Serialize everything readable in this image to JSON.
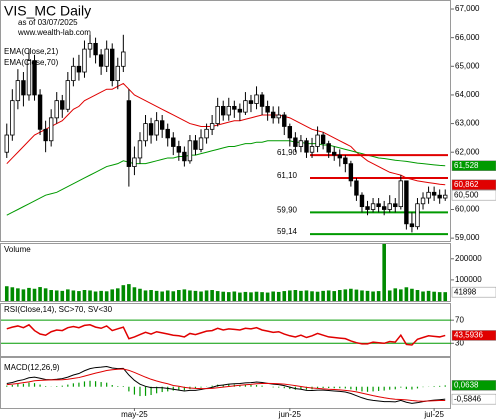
{
  "chart_data": {
    "type": "candlestick",
    "title": "VIS_MC Daily",
    "subtitle": "as of 03/07/2025",
    "source": "www.wealth-lab.com",
    "categories": [
      null,
      null,
      null,
      null,
      null,
      null,
      null,
      null,
      null,
      null,
      null,
      null,
      null,
      null,
      null,
      null,
      null,
      null,
      null,
      null,
      null,
      null,
      null,
      "may-25",
      null,
      null,
      null,
      null,
      null,
      null,
      null,
      null,
      null,
      null,
      null,
      null,
      null,
      null,
      null,
      null,
      null,
      null,
      null,
      null,
      null,
      null,
      null,
      null,
      null,
      null,
      null,
      "jun-25",
      null,
      null,
      null,
      null,
      null,
      null,
      null,
      null,
      null,
      null,
      null,
      null,
      null,
      null,
      null,
      null,
      null,
      null,
      null,
      null,
      null,
      null,
      null,
      null,
      null,
      "jul-25",
      null,
      null
    ],
    "open": [
      62.0,
      62.6,
      63.8,
      64.5,
      64.0,
      65.2,
      64.0,
      62.8,
      62.4,
      63.2,
      63.8,
      63.5,
      64.5,
      65.0,
      64.8,
      65.6,
      65.8,
      65.4,
      65.0,
      65.6,
      64.5,
      65.0,
      63.8,
      61.5,
      61.8,
      62.4,
      63.0,
      62.6,
      63.1,
      62.8,
      62.5,
      62.2,
      62.0,
      61.7,
      62.4,
      62.1,
      62.5,
      62.8,
      63.0,
      63.6,
      63.3,
      63.6,
      63.5,
      63.4,
      63.8,
      63.7,
      64.0,
      63.6,
      63.4,
      63.2,
      63.3,
      62.9,
      62.5,
      62.2,
      62.4,
      62.0,
      62.2,
      62.6,
      62.3,
      62.0,
      61.9,
      61.8,
      61.6,
      61.0,
      60.5,
      60.1,
      60.0,
      60.2,
      60.1,
      60.0,
      60.2,
      60.1,
      61.0,
      59.5,
      59.4,
      60.2,
      60.4,
      60.6,
      60.5,
      60.4
    ],
    "high": [
      63.0,
      64.2,
      64.9,
      64.8,
      65.6,
      65.4,
      64.2,
      63.1,
      63.5,
      64.1,
      64.0,
      64.8,
      65.3,
      65.4,
      65.9,
      66.1,
      66.0,
      65.6,
      65.9,
      65.8,
      65.3,
      66.1,
      64.2,
      62.2,
      62.7,
      63.3,
      63.2,
      63.4,
      63.3,
      63.0,
      62.7,
      62.4,
      62.2,
      62.6,
      62.6,
      62.8,
      63.0,
      63.3,
      63.9,
      63.8,
      63.9,
      63.8,
      63.7,
      64.1,
      64.0,
      64.3,
      64.1,
      63.8,
      63.6,
      63.6,
      63.4,
      63.0,
      62.7,
      62.6,
      62.5,
      62.5,
      62.9,
      62.7,
      62.4,
      62.2,
      62.1,
      61.9,
      61.7,
      61.1,
      60.6,
      60.3,
      60.4,
      60.4,
      60.3,
      60.5,
      60.4,
      61.2,
      61.0,
      59.9,
      60.4,
      60.6,
      60.8,
      60.8,
      60.7,
      60.7
    ],
    "low": [
      61.8,
      62.4,
      63.5,
      63.6,
      63.8,
      63.8,
      62.6,
      62.0,
      62.2,
      63.0,
      63.2,
      63.4,
      64.3,
      64.5,
      64.6,
      65.3,
      65.1,
      64.7,
      64.8,
      64.3,
      64.2,
      64.8,
      60.8,
      61.2,
      61.6,
      62.2,
      62.3,
      62.4,
      62.5,
      62.2,
      61.9,
      61.7,
      61.5,
      61.6,
      61.9,
      62.0,
      62.3,
      62.6,
      62.9,
      63.1,
      63.1,
      63.2,
      63.1,
      63.3,
      63.4,
      63.5,
      63.3,
      63.1,
      63.0,
      63.0,
      62.6,
      62.2,
      62.0,
      62.0,
      61.8,
      61.8,
      62.0,
      62.1,
      61.8,
      61.7,
      61.5,
      61.3,
      60.8,
      60.3,
      59.9,
      59.8,
      59.9,
      59.9,
      59.8,
      59.9,
      59.9,
      60.0,
      59.3,
      59.2,
      59.3,
      60.0,
      60.2,
      60.3,
      60.2,
      60.3
    ],
    "close": [
      62.6,
      63.8,
      64.5,
      64.0,
      65.2,
      64.0,
      62.8,
      62.4,
      63.2,
      63.8,
      63.5,
      64.5,
      65.0,
      64.8,
      65.6,
      65.8,
      65.4,
      65.0,
      65.6,
      64.5,
      65.0,
      65.5,
      61.5,
      61.8,
      62.4,
      63.0,
      62.6,
      63.1,
      62.8,
      62.5,
      62.2,
      62.0,
      61.7,
      62.4,
      62.1,
      62.5,
      62.8,
      63.0,
      63.6,
      63.3,
      63.6,
      63.5,
      63.4,
      63.8,
      63.7,
      64.0,
      63.6,
      63.4,
      63.2,
      63.3,
      62.9,
      62.5,
      62.2,
      62.4,
      62.0,
      62.2,
      62.6,
      62.3,
      62.0,
      61.9,
      61.8,
      61.6,
      61.0,
      60.5,
      60.1,
      60.0,
      60.2,
      60.1,
      60.0,
      60.2,
      60.1,
      61.0,
      59.5,
      59.4,
      60.2,
      60.4,
      60.6,
      60.5,
      60.4,
      60.5
    ],
    "close_label": "60,500",
    "up_color": "#ffffff",
    "down_color": "#000000",
    "ylim": [
      58.9,
      67.28
    ],
    "yticks": [
      {
        "value": 67,
        "label": "67,000"
      },
      {
        "value": 66,
        "label": "66,000"
      },
      {
        "value": 65,
        "label": "65,000"
      },
      {
        "value": 64,
        "label": "64,000"
      },
      {
        "value": 63,
        "label": "63,000"
      },
      {
        "value": 62,
        "label": "62,000"
      },
      {
        "value": 60,
        "label": "60,000"
      },
      {
        "value": 59,
        "label": "59,000"
      }
    ],
    "grid": false,
    "overlays": [
      {
        "name": "EMA(Close,21)",
        "color": "#e00000",
        "last_label": "60,862",
        "values": [
          61.6,
          61.8,
          62.0,
          62.2,
          62.4,
          62.6,
          62.7,
          62.8,
          62.9,
          63.0,
          63.1,
          63.3,
          63.5,
          63.6,
          63.8,
          63.9,
          64.0,
          64.1,
          64.2,
          64.2,
          64.3,
          64.4,
          64.2,
          64.0,
          63.9,
          63.8,
          63.7,
          63.6,
          63.5,
          63.4,
          63.3,
          63.2,
          63.1,
          63.0,
          62.95,
          62.9,
          62.9,
          62.9,
          62.95,
          63.0,
          63.05,
          63.1,
          63.1,
          63.15,
          63.2,
          63.25,
          63.3,
          63.3,
          63.3,
          63.3,
          63.25,
          63.2,
          63.1,
          63.0,
          62.9,
          62.8,
          62.75,
          62.7,
          62.6,
          62.5,
          62.4,
          62.3,
          62.2,
          62.0,
          61.85,
          61.7,
          61.6,
          61.5,
          61.4,
          61.3,
          61.25,
          61.2,
          61.1,
          61.05,
          61.0,
          60.97,
          60.94,
          60.91,
          60.88,
          60.862
        ]
      },
      {
        "name": "EMA(Close,70)",
        "color": "#009a00",
        "last_label": "61,528",
        "values": [
          59.8,
          59.9,
          60.0,
          60.1,
          60.2,
          60.3,
          60.4,
          60.5,
          60.55,
          60.6,
          60.7,
          60.8,
          60.9,
          61.0,
          61.1,
          61.2,
          61.3,
          61.4,
          61.5,
          61.55,
          61.6,
          61.7,
          61.65,
          61.6,
          61.6,
          61.6,
          61.65,
          61.7,
          61.75,
          61.8,
          61.8,
          61.85,
          61.85,
          61.9,
          61.9,
          61.95,
          62.0,
          62.05,
          62.1,
          62.15,
          62.2,
          62.2,
          62.25,
          62.3,
          62.3,
          62.35,
          62.35,
          62.4,
          62.4,
          62.4,
          62.4,
          62.4,
          62.35,
          62.35,
          62.3,
          62.3,
          62.3,
          62.25,
          62.25,
          62.2,
          62.15,
          62.1,
          62.05,
          62.0,
          61.95,
          61.9,
          61.85,
          61.8,
          61.78,
          61.75,
          61.72,
          61.7,
          61.68,
          61.65,
          61.62,
          61.6,
          61.58,
          61.56,
          61.54,
          61.528
        ]
      }
    ],
    "levels": [
      {
        "value": 61.9,
        "label": "61,90",
        "color": "#e00000"
      },
      {
        "value": 61.1,
        "label": "61,10",
        "color": "#e00000"
      },
      {
        "value": 59.9,
        "label": "59,90",
        "color": "#009a00"
      },
      {
        "value": 59.14,
        "label": "59,14",
        "color": "#009a00"
      }
    ],
    "volume": {
      "title": "Volume",
      "color": "#008a00",
      "values": [
        70000,
        65000,
        60000,
        55000,
        62000,
        58000,
        66000,
        60000,
        52000,
        50000,
        48000,
        55000,
        50000,
        47000,
        52000,
        50000,
        45000,
        48000,
        46000,
        55000,
        60000,
        75000,
        80000,
        65000,
        58000,
        50000,
        52000,
        48000,
        45000,
        50000,
        46000,
        52000,
        55000,
        50000,
        48000,
        45000,
        50000,
        52000,
        47000,
        44000,
        42000,
        45000,
        40000,
        43000,
        41000,
        44000,
        42000,
        40000,
        45000,
        43000,
        47000,
        50000,
        52000,
        48000,
        50000,
        46000,
        44000,
        48000,
        50000,
        47000,
        52000,
        55000,
        58000,
        54000,
        50000,
        48000,
        45000,
        47000,
        270000,
        50000,
        60000,
        55000,
        65000,
        58000,
        52000,
        45000,
        48000,
        44000,
        42000,
        41898
      ],
      "ylim": [
        0,
        270000
      ],
      "yticks": [
        200000,
        100000
      ]
    },
    "rsi": {
      "title": "RSI(Close,14), SC>70, SV<30",
      "color": "#e00000",
      "last_label": "43,5936",
      "values": [
        55,
        58,
        60,
        57,
        62,
        52,
        46,
        44,
        50,
        53,
        52,
        57,
        59,
        57,
        61,
        62,
        58,
        56,
        60,
        52,
        55,
        58,
        38,
        41,
        45,
        49,
        46,
        50,
        48,
        46,
        44,
        43,
        41,
        47,
        45,
        48,
        51,
        52,
        56,
        53,
        55,
        54,
        53,
        56,
        55,
        57,
        53,
        51,
        49,
        50,
        46,
        43,
        41,
        44,
        40,
        43,
        47,
        44,
        41,
        40,
        39,
        38,
        34,
        31,
        29,
        29,
        32,
        31,
        30,
        33,
        32,
        44,
        28,
        27,
        37,
        40,
        43,
        42,
        41,
        43.5936
      ],
      "ylim": [
        8,
        98
      ],
      "yticks": [
        70,
        30
      ],
      "band_color": "#009a00"
    },
    "macd": {
      "title": "MACD(12,26,9)",
      "ylim": [
        -1,
        1.35
      ],
      "macd": {
        "color": "#000000",
        "last_label": "-0,5846",
        "values": [
          0.15,
          0.2,
          0.28,
          0.33,
          0.42,
          0.45,
          0.4,
          0.34,
          0.33,
          0.35,
          0.38,
          0.45,
          0.55,
          0.62,
          0.75,
          0.85,
          0.9,
          0.92,
          0.95,
          0.88,
          0.85,
          0.86,
          0.55,
          0.3,
          0.12,
          0.02,
          -0.04,
          -0.04,
          -0.05,
          -0.08,
          -0.12,
          -0.16,
          -0.2,
          -0.17,
          -0.17,
          -0.13,
          -0.08,
          -0.03,
          0.05,
          0.08,
          0.12,
          0.14,
          0.15,
          0.18,
          0.19,
          0.22,
          0.2,
          0.16,
          0.12,
          0.1,
          0.05,
          -0.02,
          -0.09,
          -0.12,
          -0.17,
          -0.18,
          -0.16,
          -0.16,
          -0.18,
          -0.2,
          -0.22,
          -0.25,
          -0.32,
          -0.42,
          -0.52,
          -0.6,
          -0.64,
          -0.67,
          -0.7,
          -0.7,
          -0.71,
          -0.64,
          -0.73,
          -0.78,
          -0.75,
          -0.7,
          -0.66,
          -0.63,
          -0.61,
          -0.5846
        ]
      },
      "signal": {
        "color": "#e00000",
        "values": [
          0.1,
          0.12,
          0.15,
          0.19,
          0.23,
          0.28,
          0.3,
          0.31,
          0.32,
          0.32,
          0.33,
          0.35,
          0.39,
          0.43,
          0.5,
          0.57,
          0.64,
          0.7,
          0.76,
          0.8,
          0.82,
          0.83,
          0.77,
          0.67,
          0.56,
          0.45,
          0.35,
          0.27,
          0.2,
          0.14,
          0.06,
          0.02,
          -0.03,
          -0.06,
          -0.08,
          -0.09,
          -0.09,
          -0.08,
          -0.05,
          -0.02,
          0.01,
          0.04,
          0.07,
          0.09,
          0.11,
          0.14,
          0.15,
          0.16,
          0.15,
          0.14,
          0.12,
          0.09,
          0.05,
          0.01,
          -0.03,
          -0.06,
          -0.08,
          -0.1,
          -0.12,
          -0.13,
          -0.15,
          -0.17,
          -0.2,
          -0.24,
          -0.3,
          -0.36,
          -0.42,
          -0.47,
          -0.52,
          -0.56,
          -0.59,
          -0.6,
          -0.62,
          -0.65,
          -0.67,
          -0.68,
          -0.67,
          -0.66,
          -0.65,
          -0.6484
        ]
      },
      "histogram": {
        "color": "#009a00",
        "last_label": "0,0638",
        "values": [
          0.05,
          0.08,
          0.13,
          0.14,
          0.19,
          0.17,
          0.1,
          0.03,
          0.01,
          0.03,
          0.05,
          0.1,
          0.16,
          0.19,
          0.25,
          0.28,
          0.26,
          0.22,
          0.19,
          0.08,
          0.03,
          0.03,
          -0.22,
          -0.37,
          -0.44,
          -0.43,
          -0.39,
          -0.31,
          -0.25,
          -0.22,
          -0.18,
          -0.18,
          -0.17,
          -0.11,
          -0.09,
          -0.04,
          0.01,
          0.05,
          0.1,
          0.1,
          0.11,
          0.1,
          0.08,
          0.09,
          0.08,
          0.08,
          0.05,
          0.0,
          -0.03,
          -0.04,
          -0.07,
          -0.11,
          -0.14,
          -0.13,
          -0.14,
          -0.12,
          -0.08,
          -0.06,
          -0.06,
          -0.07,
          -0.07,
          -0.08,
          -0.12,
          -0.18,
          -0.22,
          -0.24,
          -0.22,
          -0.2,
          -0.18,
          -0.14,
          -0.12,
          -0.04,
          -0.11,
          -0.13,
          -0.08,
          -0.02,
          0.01,
          0.03,
          0.04,
          0.0638
        ]
      }
    }
  }
}
